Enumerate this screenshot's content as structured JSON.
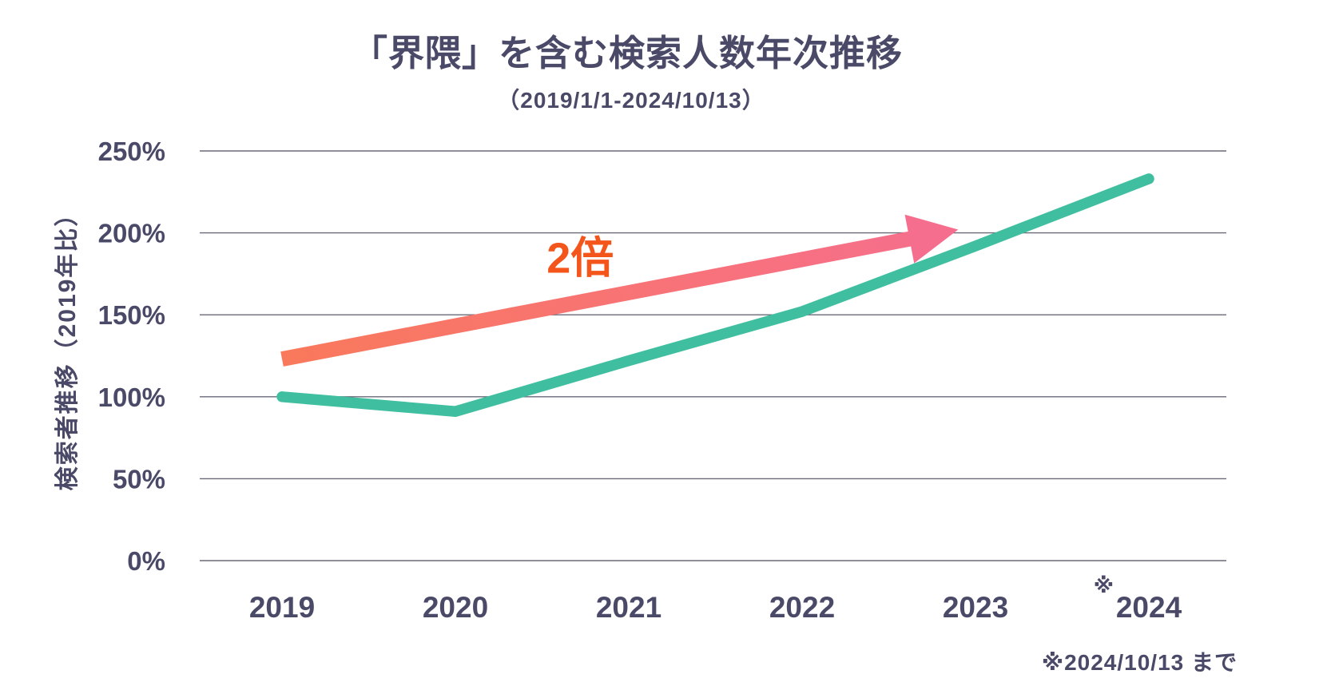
{
  "colors": {
    "background": "#FFFFFF",
    "text": "#4A4A68",
    "grid": "#6A6A78",
    "line": "#3FBFA0",
    "annotation_orange": "#F4551B",
    "arrow_gradient_start": "#F9795B",
    "arrow_gradient_end": "#F66E8E"
  },
  "footer": {
    "note": "※2024/10/13 まで"
  },
  "chart_data": {
    "type": "line",
    "title": "「界隈」を含む検索人数年次推移",
    "subtitle": "（2019/1/1-2024/10/13）",
    "ylabel": "検索者推移（2019年比）",
    "xlabel": "",
    "categories": [
      "2019",
      "2020",
      "2021",
      "2022",
      "2023",
      "2024"
    ],
    "values": [
      100,
      91,
      122,
      152,
      192,
      233
    ],
    "unit": "%",
    "line_color": "#3FBFA0",
    "yticks": [
      0,
      50,
      100,
      150,
      200,
      250
    ],
    "ytick_labels": [
      "0%",
      "50%",
      "100%",
      "150%",
      "200%",
      "250%"
    ],
    "ylim": [
      0,
      260
    ],
    "grid": true,
    "legend": "none",
    "x_note": {
      "category": "2024",
      "marker": "※"
    },
    "annotation": {
      "label": "2倍",
      "label_color": "#F4551B",
      "label_pos": {
        "x": 2020.72,
        "y": 185
      },
      "arrow_from": {
        "x": 2019.0,
        "y": 123
      },
      "arrow_to": {
        "x": 2022.9,
        "y": 202
      },
      "gradient": [
        "#F9795B",
        "#F66E8E"
      ]
    }
  }
}
